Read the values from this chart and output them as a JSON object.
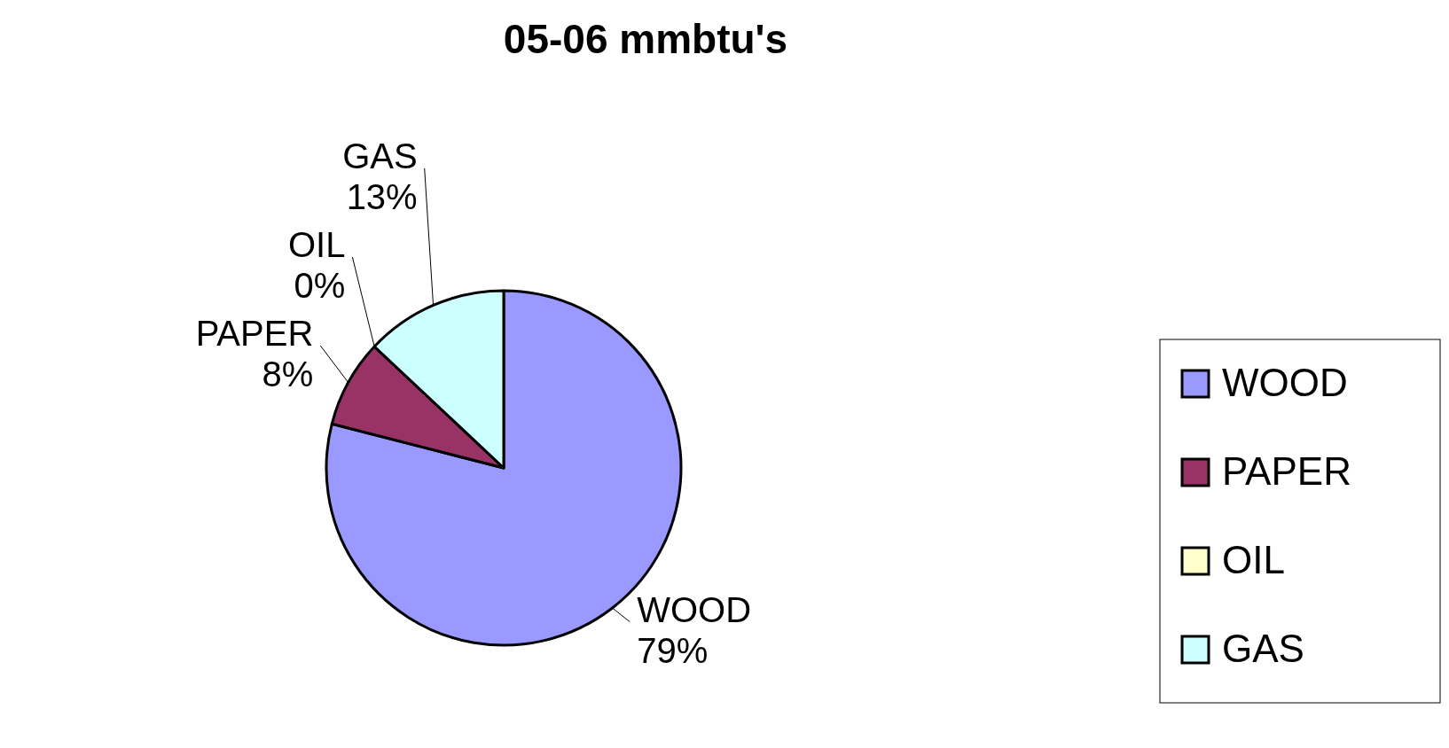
{
  "chart_data": {
    "type": "pie",
    "title": "05-06 mmbtu's",
    "categories": [
      "WOOD",
      "PAPER",
      "OIL",
      "GAS"
    ],
    "values": [
      79,
      8,
      0,
      13
    ],
    "value_labels": [
      "79%",
      "8%",
      "0%",
      "13%"
    ],
    "colors": [
      "#9999ff",
      "#993366",
      "#ffffcc",
      "#ccffff"
    ],
    "legend": "right"
  }
}
